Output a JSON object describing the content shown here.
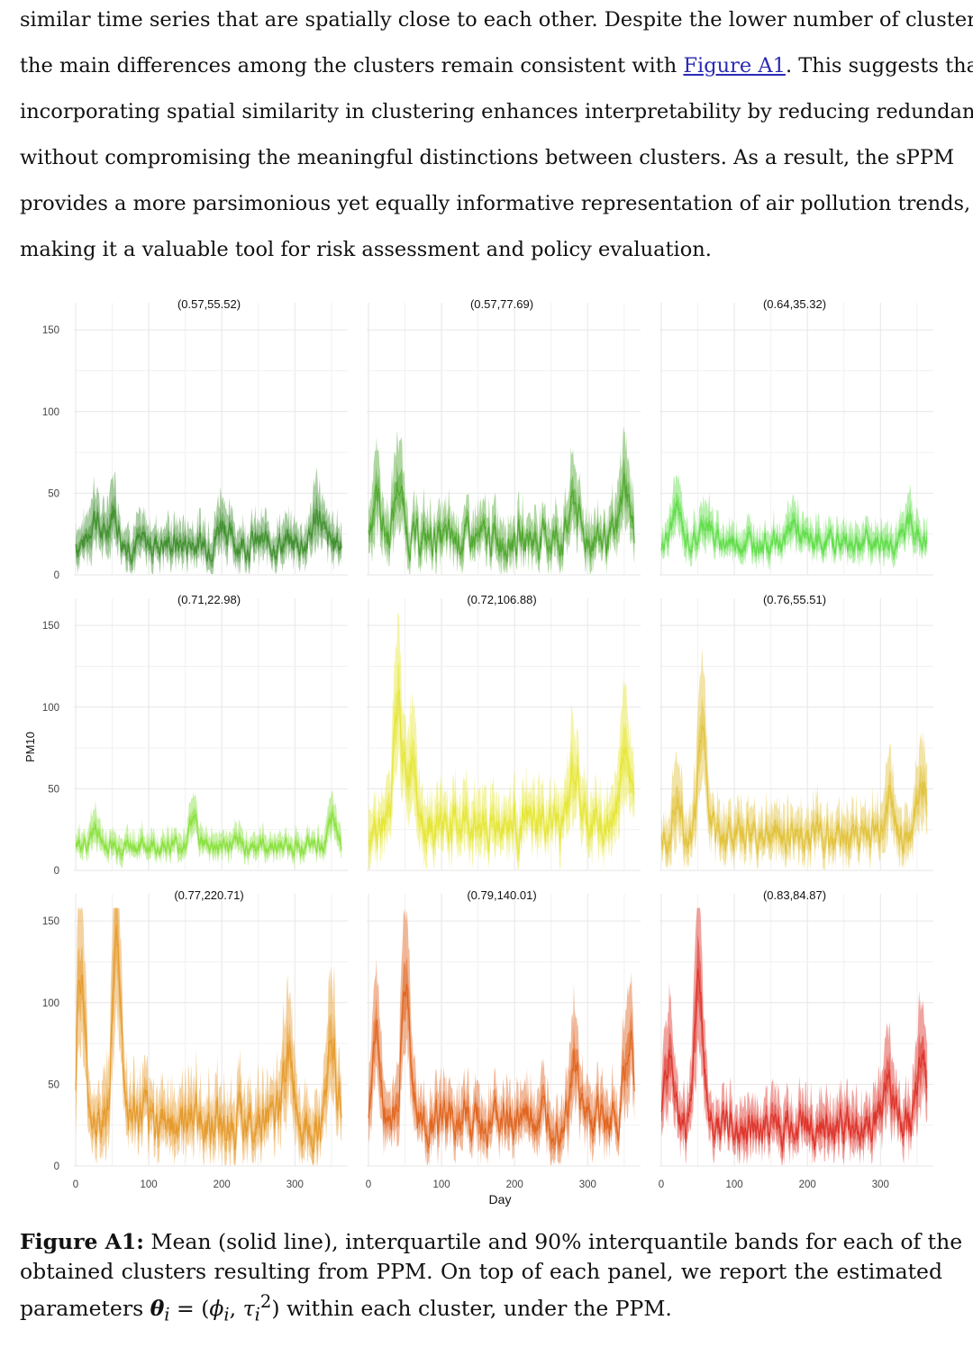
{
  "paragraph": {
    "lines": [
      "similar time series that are spatially close to each other. Despite the lower number of clusters,",
      "incorporating spatial similarity in clustering enhances interpretability by reducing redundancy",
      "without compromising the meaningful distinctions between clusters. As a result, the sPPM",
      "provides a more parsimonious yet equally informative representation of air pollution trends,",
      "making it a valuable tool for risk assessment and policy evaluation."
    ],
    "line2_before": "the main differences among the clusters remain consistent with ",
    "line2_link": "Figure A1",
    "line2_after": ". This suggests that"
  },
  "caption": {
    "label": "Figure A1:",
    "line1": " Mean (solid line), interquartile and 90% interquantile bands for each of the",
    "line2": "obtained clusters resulting from PPM. On top of each panel, we report the estimated",
    "line3_pre": "parameters ",
    "line3_math": "θ",
    "line3_sub": "i",
    "line3_eq": " = (",
    "line3_phi": "ϕ",
    "line3_tau": "τ",
    "line3_post": ") within each cluster, under the PPM."
  },
  "chart_data": {
    "type": "line",
    "xlabel": "Day",
    "ylabel": "PM10",
    "xlim": [
      0,
      365
    ],
    "ylim": [
      0,
      160
    ],
    "x_ticks": [
      0,
      100,
      200,
      300
    ],
    "y_ticks": [
      0,
      50,
      100,
      150
    ],
    "grid": true,
    "panels": [
      {
        "title": "(0.57,55.52)",
        "color": "#3f8f2e",
        "base": 19,
        "spread": 10,
        "peaks": [
          [
            25,
            18
          ],
          [
            50,
            22
          ],
          [
            200,
            15
          ],
          [
            330,
            20
          ]
        ]
      },
      {
        "title": "(0.57,77.69)",
        "color": "#4fa72e",
        "base": 22,
        "spread": 12,
        "peaks": [
          [
            10,
            28
          ],
          [
            40,
            35
          ],
          [
            280,
            25
          ],
          [
            350,
            35
          ]
        ]
      },
      {
        "title": "(0.64,35.32)",
        "color": "#5fdd48",
        "base": 20,
        "spread": 8,
        "peaks": [
          [
            20,
            22
          ],
          [
            60,
            14
          ],
          [
            180,
            12
          ],
          [
            340,
            14
          ]
        ]
      },
      {
        "title": "(0.71,22.98)",
        "color": "#88e03c",
        "base": 15,
        "spread": 6,
        "peaks": [
          [
            25,
            10
          ],
          [
            160,
            18
          ],
          [
            350,
            14
          ]
        ]
      },
      {
        "title": "(0.72,106.88)",
        "color": "#e6e636",
        "base": 28,
        "spread": 14,
        "peaks": [
          [
            40,
            75
          ],
          [
            60,
            45
          ],
          [
            280,
            35
          ],
          [
            350,
            55
          ]
        ]
      },
      {
        "title": "(0.76,55.51)",
        "color": "#e2c23a",
        "base": 22,
        "spread": 12,
        "peaks": [
          [
            20,
            30
          ],
          [
            55,
            65
          ],
          [
            310,
            25
          ],
          [
            355,
            35
          ]
        ]
      },
      {
        "title": "(0.77,220.71)",
        "color": "#e69a2a",
        "base": 28,
        "spread": 16,
        "peaks": [
          [
            5,
            90
          ],
          [
            55,
            110
          ],
          [
            290,
            45
          ],
          [
            350,
            50
          ]
        ]
      },
      {
        "title": "(0.79,140.01)",
        "color": "#e0641e",
        "base": 27,
        "spread": 14,
        "peaks": [
          [
            10,
            50
          ],
          [
            50,
            85
          ],
          [
            280,
            40
          ],
          [
            355,
            55
          ]
        ]
      },
      {
        "title": "(0.83,84.87)",
        "color": "#dd3027",
        "base": 24,
        "spread": 13,
        "peaks": [
          [
            10,
            45
          ],
          [
            50,
            95
          ],
          [
            310,
            30
          ],
          [
            355,
            45
          ]
        ]
      }
    ]
  }
}
